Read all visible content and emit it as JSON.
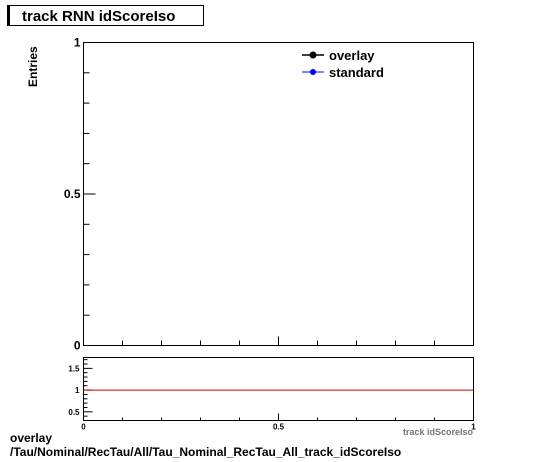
{
  "title": "track RNN idScoreIso",
  "main_plot": {
    "ylabel": "Entries",
    "xlabel": "track idScoreIso",
    "xlim": [
      0,
      1
    ],
    "ylim": [
      0,
      1
    ],
    "x_tick_labels": [
      "0",
      "0.5",
      "1"
    ],
    "y_tick_labels": [
      "0",
      "0.5",
      "1"
    ]
  },
  "legend": {
    "placement": "top-right",
    "entries": [
      {
        "name": "overlay",
        "color": "#000000"
      },
      {
        "name": "standard",
        "color": "#0000ff"
      }
    ]
  },
  "ratio_plot": {
    "xlim": [
      0,
      1
    ],
    "ylim": [
      0.3,
      1.75
    ],
    "reference_value": 1,
    "reference_color": "#cc0000",
    "x_tick_labels": [
      "0",
      "0.5",
      "1"
    ],
    "y_tick_labels": [
      "0.5",
      "1",
      "1.5"
    ]
  },
  "chart_data": {
    "type": "line",
    "title": "track RNN idScoreIso",
    "xlabel": "track idScoreIso",
    "ylabel": "Entries",
    "xlim": [
      0,
      1
    ],
    "ylim": [
      0,
      1
    ],
    "series": [
      {
        "name": "overlay",
        "x": [],
        "values": []
      },
      {
        "name": "standard",
        "x": [],
        "values": []
      }
    ]
  },
  "footer": {
    "line1": "overlay",
    "line2": "/Tau/Nominal/RecTau/All/Tau_Nominal_RecTau_All_track_idScoreIso"
  }
}
